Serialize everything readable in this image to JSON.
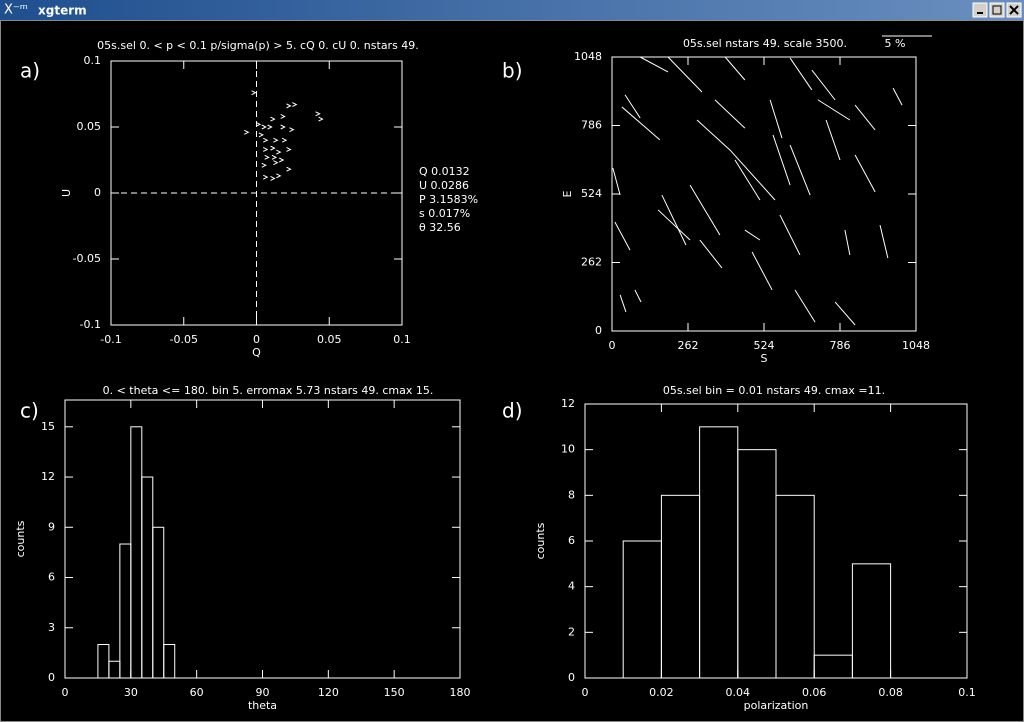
{
  "window": {
    "title": "xgterm"
  },
  "chart_data": [
    {
      "type": "scatter",
      "panel_label": "a)",
      "title": "05s.sel 0. < p < 0.1  p/sigma(p) > 5.  cQ 0.  cU 0.  nstars 49.",
      "xlabel": "Q",
      "ylabel": "U",
      "color": "#ffffff",
      "xlim": [
        -0.1,
        0.1
      ],
      "ylim": [
        -0.1,
        0.1
      ],
      "xticks": [
        -0.1,
        -0.05,
        0,
        0.05,
        0.1
      ],
      "yticks": [
        -0.1,
        -0.05,
        0,
        0.05,
        0.1
      ],
      "annotations": [
        "Q 0.0132",
        "U 0.0286",
        "P 3.1583%",
        "s 0.017%",
        "θ 32.56"
      ],
      "x": [
        -0.002,
        -0.007,
        0.001,
        0.005,
        0.009,
        0.011,
        0.018,
        0.022,
        0.026,
        0.018,
        0.024,
        0.042,
        0.044,
        0.006,
        0.013,
        0.019,
        0.006,
        0.011,
        0.015,
        0.022,
        0.007,
        0.012,
        0.017,
        0.005,
        0.013,
        0.022,
        0.006,
        0.011,
        0.015,
        0.003
      ],
      "y": [
        0.076,
        0.046,
        0.052,
        0.05,
        0.05,
        0.056,
        0.058,
        0.066,
        0.067,
        0.05,
        0.048,
        0.06,
        0.056,
        0.04,
        0.04,
        0.04,
        0.033,
        0.034,
        0.031,
        0.033,
        0.027,
        0.027,
        0.025,
        0.021,
        0.023,
        0.018,
        0.012,
        0.011,
        0.013,
        0.044
      ]
    },
    {
      "type": "vector",
      "panel_label": "b)",
      "title": "05s.sel nstars 49.  scale 3500.",
      "scale_label": "5 %",
      "xlabel": "S",
      "ylabel": "E",
      "color": "#ffffff",
      "xlim": [
        0,
        1048
      ],
      "ylim": [
        0,
        1048
      ],
      "xticks": [
        0,
        262,
        524,
        786,
        1048
      ],
      "yticks": [
        0,
        262,
        524,
        786,
        1048
      ],
      "segments": [
        {
          "x": [
            97,
            193
          ],
          "y": [
            1048,
            991
          ]
        },
        {
          "x": [
            193,
            310
          ],
          "y": [
            1048,
            914
          ]
        },
        {
          "x": [
            45,
            97
          ],
          "y": [
            903,
            815
          ]
        },
        {
          "x": [
            34,
            165
          ],
          "y": [
            857,
            731
          ]
        },
        {
          "x": [
            293,
            407
          ],
          "y": [
            807,
            692
          ]
        },
        {
          "x": [
            390,
            458
          ],
          "y": [
            1048,
            960
          ]
        },
        {
          "x": [
            355,
            458
          ],
          "y": [
            884,
            776
          ]
        },
        {
          "x": [
            545,
            586
          ],
          "y": [
            884,
            738
          ]
        },
        {
          "x": [
            614,
            689
          ],
          "y": [
            1044,
            922
          ]
        },
        {
          "x": [
            689,
            769
          ],
          "y": [
            998,
            884
          ]
        },
        {
          "x": [
            710,
            820
          ],
          "y": [
            884,
            807
          ]
        },
        {
          "x": [
            838,
            907
          ],
          "y": [
            864,
            769
          ]
        },
        {
          "x": [
            969,
            1000
          ],
          "y": [
            929,
            864
          ]
        },
        {
          "x": [
            407,
            562
          ],
          "y": [
            692,
            501
          ]
        },
        {
          "x": [
            555,
            614
          ],
          "y": [
            750,
            558
          ]
        },
        {
          "x": [
            614,
            683
          ],
          "y": [
            711,
            520
          ]
        },
        {
          "x": [
            738,
            786
          ],
          "y": [
            807,
            654
          ]
        },
        {
          "x": [
            838,
            907
          ],
          "y": [
            673,
            532
          ]
        },
        {
          "x": [
            269,
            372
          ],
          "y": [
            558,
            367
          ]
        },
        {
          "x": [
            172,
            255
          ],
          "y": [
            520,
            329
          ]
        },
        {
          "x": [
            3,
            28
          ],
          "y": [
            623,
            520
          ]
        },
        {
          "x": [
            10,
            62
          ],
          "y": [
            417,
            310
          ]
        },
        {
          "x": [
            159,
            269
          ],
          "y": [
            463,
            348
          ]
        },
        {
          "x": [
            483,
            552
          ],
          "y": [
            302,
            157
          ]
        },
        {
          "x": [
            579,
            648
          ],
          "y": [
            444,
            291
          ]
        },
        {
          "x": [
            631,
            700
          ],
          "y": [
            157,
            34
          ]
        },
        {
          "x": [
            924,
            951
          ],
          "y": [
            405,
            279
          ]
        },
        {
          "x": [
            803,
            820
          ],
          "y": [
            386,
            291
          ]
        },
        {
          "x": [
            769,
            838
          ],
          "y": [
            111,
            23
          ]
        },
        {
          "x": [
            28,
            48
          ],
          "y": [
            138,
            73
          ]
        },
        {
          "x": [
            79,
            100
          ],
          "y": [
            157,
            111
          ]
        },
        {
          "x": [
            303,
            379
          ],
          "y": [
            348,
            241
          ]
        },
        {
          "x": [
            424,
            510
          ],
          "y": [
            654,
            501
          ]
        },
        {
          "x": [
            458,
            510
          ],
          "y": [
            386,
            348
          ]
        }
      ]
    },
    {
      "type": "histogram",
      "panel_label": "c)",
      "title": "0. < theta <= 180.  bin 5.   erromax 5.73  nstars 49.  cmax 15.",
      "xlabel": "theta",
      "ylabel": "counts",
      "color": "#ffffff",
      "xlim": [
        0,
        180
      ],
      "ylim": [
        0,
        16.6
      ],
      "xticks": [
        0,
        30,
        60,
        90,
        120,
        150,
        180
      ],
      "yticks": [
        0,
        3,
        6,
        9,
        12,
        15
      ],
      "bins": [
        15,
        20,
        25,
        30,
        35,
        40,
        45,
        50
      ],
      "values": [
        2,
        1,
        8,
        15,
        12,
        9,
        2
      ]
    },
    {
      "type": "histogram",
      "panel_label": "d)",
      "title": "05s.sel bin = 0.01  nstars 49. cmax =11.",
      "xlabel": "polarization",
      "ylabel": "counts",
      "color": "#ffffff",
      "xlim": [
        0,
        0.1
      ],
      "ylim": [
        0,
        12
      ],
      "xticks": [
        0,
        0.02,
        0.04,
        0.06,
        0.08,
        0.1
      ],
      "yticks": [
        0,
        2,
        4,
        6,
        8,
        10,
        12
      ],
      "bins": [
        0.01,
        0.02,
        0.03,
        0.04,
        0.05,
        0.06,
        0.07,
        0.08
      ],
      "values": [
        6,
        8,
        11,
        10,
        8,
        1,
        5
      ]
    }
  ]
}
